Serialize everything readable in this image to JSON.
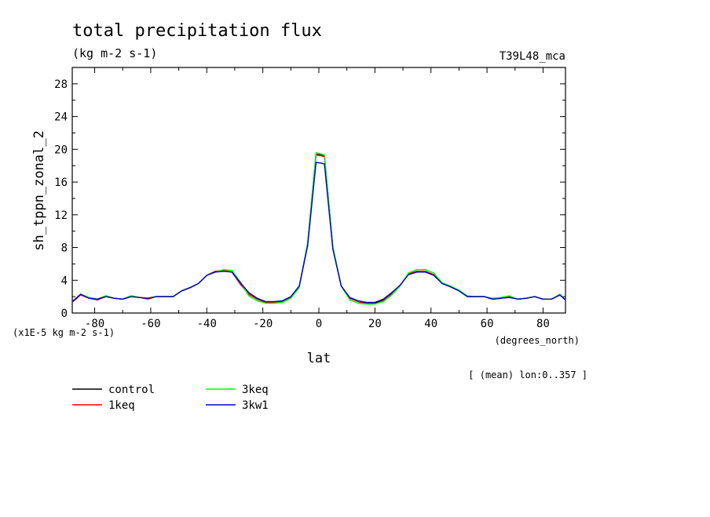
{
  "chart_data": {
    "type": "line",
    "title": "total precipitation flux",
    "subtitle": "(kg m-2 s-1)",
    "run_id": "T39L48_mca",
    "ylabel": "sh_tppn_zonal_2",
    "xlabel": "lat",
    "x_units": "(degrees_north)",
    "y_scale_note": "(x1E-5 kg m-2 s-1)",
    "averaging_note": "[ (mean) lon:0..357 ]",
    "xlim": [
      -88,
      88
    ],
    "ylim": [
      0,
      30
    ],
    "xticks": [
      -80,
      -60,
      -40,
      -20,
      0,
      20,
      40,
      60,
      80
    ],
    "xtick_labels": [
      "-80",
      "-60",
      "-40",
      "-20",
      "0",
      "20",
      "40",
      "60",
      "80"
    ],
    "yticks": [
      0,
      4,
      8,
      12,
      16,
      20,
      24,
      28
    ],
    "ytick_labels": [
      "0",
      "4",
      "8",
      "12",
      "16",
      "20",
      "24",
      "28"
    ],
    "x": [
      -88,
      -85,
      -82,
      -79,
      -76,
      -73,
      -70,
      -67,
      -64,
      -61,
      -58,
      -55,
      -52,
      -49,
      -46,
      -43,
      -40,
      -37,
      -34,
      -31,
      -28,
      -25,
      -22,
      -19,
      -16,
      -13,
      -10,
      -7,
      -4,
      -1,
      1,
      2,
      5,
      8,
      11,
      14,
      17,
      20,
      23,
      26,
      29,
      32,
      35,
      38,
      41,
      44,
      47,
      50,
      53,
      56,
      59,
      62,
      65,
      68,
      71,
      74,
      77,
      80,
      83,
      86,
      88
    ],
    "series": [
      {
        "name": "control",
        "color": "#000000",
        "values": [
          1.4,
          2.3,
          1.8,
          1.7,
          2.1,
          1.8,
          1.7,
          2.1,
          1.9,
          1.8,
          2.0,
          2.0,
          2.0,
          2.7,
          3.1,
          3.6,
          4.6,
          5.1,
          5.2,
          5.0,
          3.6,
          2.3,
          1.7,
          1.3,
          1.3,
          1.4,
          1.9,
          3.2,
          8.5,
          19.4,
          19.3,
          19.2,
          8.0,
          3.3,
          1.8,
          1.4,
          1.2,
          1.2,
          1.6,
          2.4,
          3.4,
          4.8,
          5.1,
          5.1,
          4.7,
          3.6,
          3.2,
          2.8,
          2.0,
          2.0,
          2.0,
          1.7,
          1.8,
          2.0,
          1.7,
          1.8,
          2.0,
          1.7,
          1.7,
          2.2,
          1.6
        ]
      },
      {
        "name": "1keq",
        "color": "#ff0000",
        "values": [
          1.3,
          2.2,
          1.8,
          1.6,
          2.0,
          1.8,
          1.7,
          2.0,
          1.9,
          1.7,
          2.0,
          2.0,
          2.0,
          2.7,
          3.1,
          3.6,
          4.6,
          5.1,
          5.2,
          5.0,
          3.5,
          2.3,
          1.7,
          1.3,
          1.3,
          1.4,
          1.9,
          3.2,
          8.4,
          19.3,
          19.2,
          19.1,
          8.0,
          3.3,
          1.8,
          1.4,
          1.1,
          1.1,
          1.5,
          2.3,
          3.4,
          4.8,
          5.1,
          5.1,
          4.7,
          3.6,
          3.2,
          2.7,
          2.0,
          2.0,
          2.0,
          1.7,
          1.8,
          2.0,
          1.7,
          1.8,
          2.0,
          1.7,
          1.7,
          2.2,
          1.6
        ]
      },
      {
        "name": "3keq",
        "color": "#00ff00",
        "values": [
          1.4,
          2.3,
          1.9,
          1.7,
          2.1,
          1.8,
          1.7,
          2.1,
          1.9,
          1.8,
          2.0,
          2.0,
          2.0,
          2.7,
          3.1,
          3.6,
          4.6,
          5.0,
          5.3,
          5.2,
          3.8,
          2.1,
          1.5,
          1.2,
          1.2,
          1.3,
          1.8,
          3.1,
          8.6,
          19.6,
          19.4,
          19.3,
          8.1,
          3.3,
          1.6,
          1.2,
          1.1,
          1.1,
          1.4,
          2.2,
          3.3,
          4.9,
          5.3,
          5.3,
          4.9,
          3.7,
          3.3,
          2.8,
          2.1,
          2.0,
          2.0,
          1.8,
          1.9,
          2.1,
          1.7,
          1.8,
          2.0,
          1.7,
          1.7,
          2.3,
          1.6
        ]
      },
      {
        "name": "3kw1",
        "color": "#0000cc",
        "values": [
          1.4,
          2.3,
          1.8,
          1.7,
          2.0,
          1.8,
          1.7,
          2.0,
          1.9,
          1.8,
          2.0,
          2.0,
          2.0,
          2.7,
          3.1,
          3.6,
          4.6,
          5.0,
          5.1,
          5.0,
          3.7,
          2.5,
          1.8,
          1.4,
          1.4,
          1.5,
          2.0,
          3.3,
          8.2,
          18.4,
          18.3,
          18.2,
          7.8,
          3.3,
          1.9,
          1.5,
          1.3,
          1.3,
          1.7,
          2.5,
          3.4,
          4.7,
          5.0,
          5.0,
          4.6,
          3.6,
          3.2,
          2.7,
          2.0,
          2.0,
          2.0,
          1.7,
          1.8,
          1.9,
          1.7,
          1.8,
          2.0,
          1.7,
          1.7,
          2.2,
          1.6
        ]
      }
    ],
    "legend_placement": "bottom-left"
  }
}
